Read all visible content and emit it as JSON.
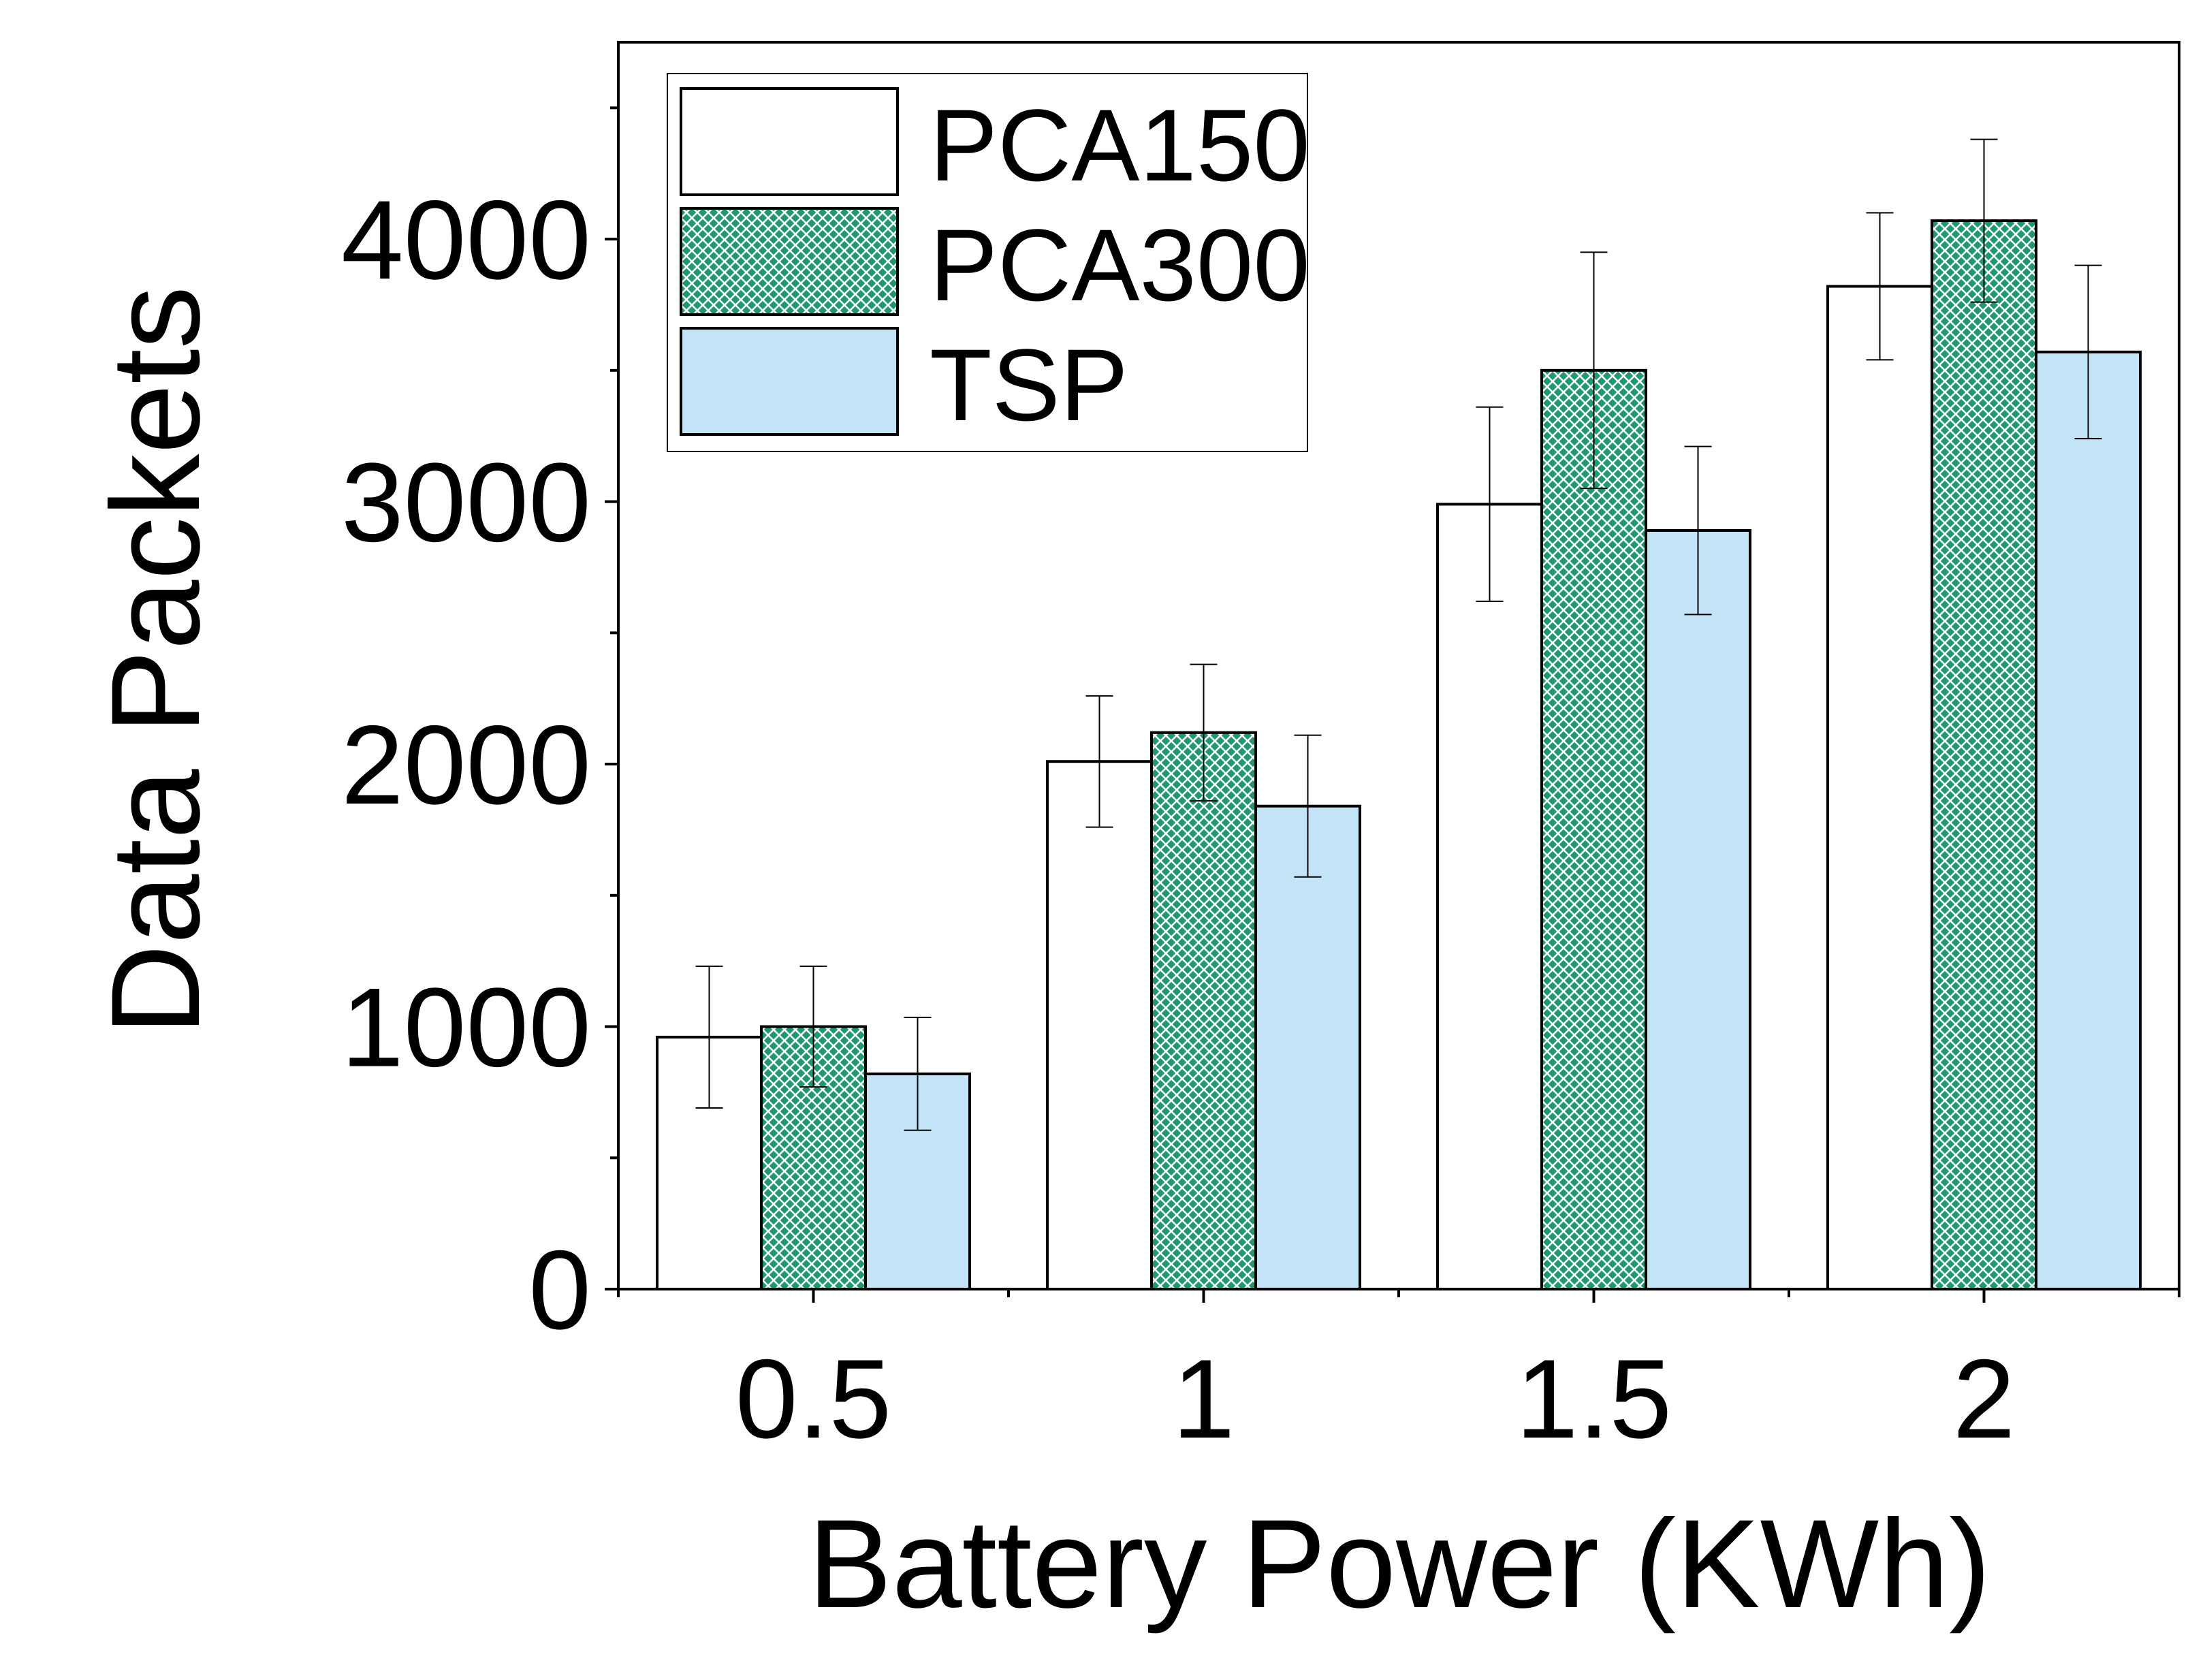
{
  "chart_data": {
    "type": "bar",
    "title": "",
    "xlabel": "Battery Power (KWh)",
    "ylabel": "Data Packets",
    "categories": [
      "0.5",
      "1",
      "1.5",
      "2"
    ],
    "ylim": [
      0,
      4750
    ],
    "yticks": [
      0,
      1000,
      2000,
      3000,
      4000
    ],
    "yticks_minor": [
      500,
      1500,
      2500,
      3500,
      4500
    ],
    "grid": false,
    "legend_position": "top-left",
    "series": [
      {
        "name": "PCA150",
        "values": [
          960,
          2010,
          2990,
          3820
        ],
        "errors": [
          270,
          250,
          370,
          280
        ],
        "fill": "#ffffff",
        "pattern": "none"
      },
      {
        "name": "PCA300",
        "values": [
          1000,
          2120,
          3500,
          4070
        ],
        "errors": [
          230,
          260,
          450,
          310
        ],
        "fill": "#1a9a6e",
        "pattern": "crosshatch"
      },
      {
        "name": "TSP",
        "values": [
          820,
          1840,
          2890,
          3570
        ],
        "errors": [
          215,
          270,
          320,
          330
        ],
        "fill": "#c3e4f7",
        "pattern": "none"
      }
    ]
  }
}
